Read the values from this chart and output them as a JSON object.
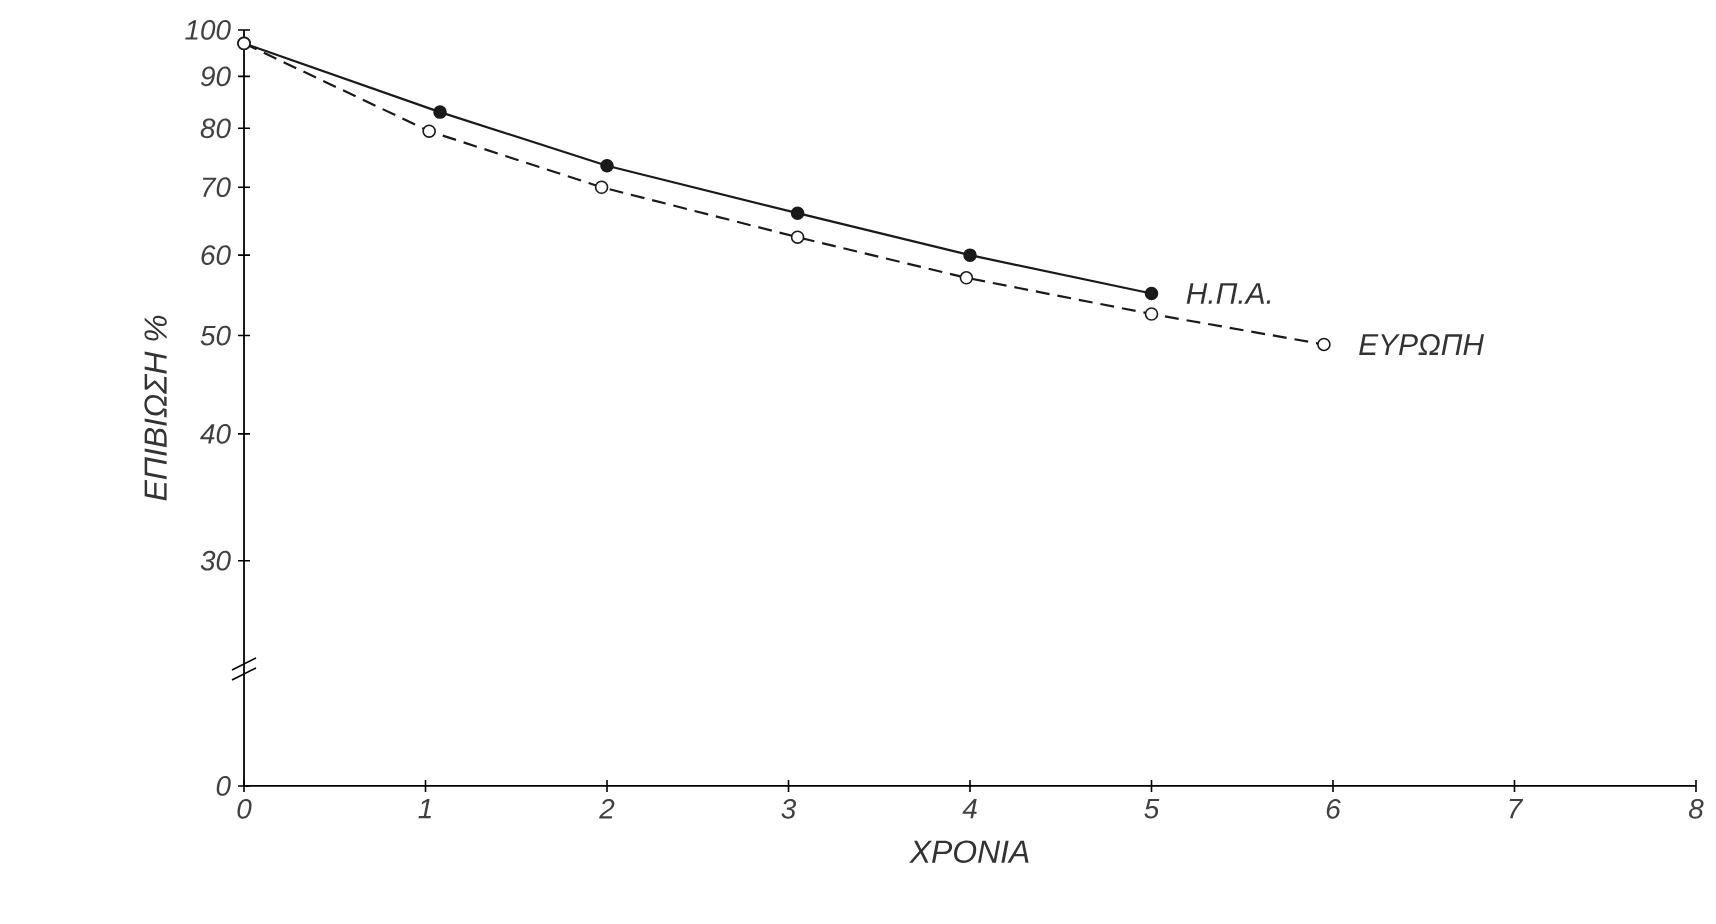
{
  "chart_data": {
    "type": "line",
    "xlabel": "ΧΡΟΝΙΑ",
    "ylabel": "ΕΠΙΒΙΩΣΗ %",
    "log": "y",
    "xlim": [
      0,
      8
    ],
    "xticks": [
      0,
      1,
      2,
      3,
      4,
      5,
      6,
      7,
      8
    ],
    "ylim": [
      0,
      100
    ],
    "yticks": [
      0,
      30,
      40,
      50,
      60,
      70,
      80,
      90,
      100
    ],
    "grid": false,
    "marker": "circle",
    "series": [
      {
        "name": "Η.Π.Α.",
        "color": "#1a1a1a",
        "line_style": "solid",
        "x": [
          0,
          1.08,
          2.0,
          3.05,
          4.0,
          5.0
        ],
        "values": [
          97,
          83,
          73.5,
          66,
          60,
          55
        ]
      },
      {
        "name": "ΕΥΡΩΠΗ",
        "color": "#1a1a1a",
        "line_style": "dashed",
        "x": [
          0,
          1.02,
          1.97,
          3.05,
          3.98,
          5.0,
          5.95
        ],
        "values": [
          97,
          79.5,
          70,
          62.5,
          57,
          52.5,
          49
        ]
      }
    ]
  }
}
